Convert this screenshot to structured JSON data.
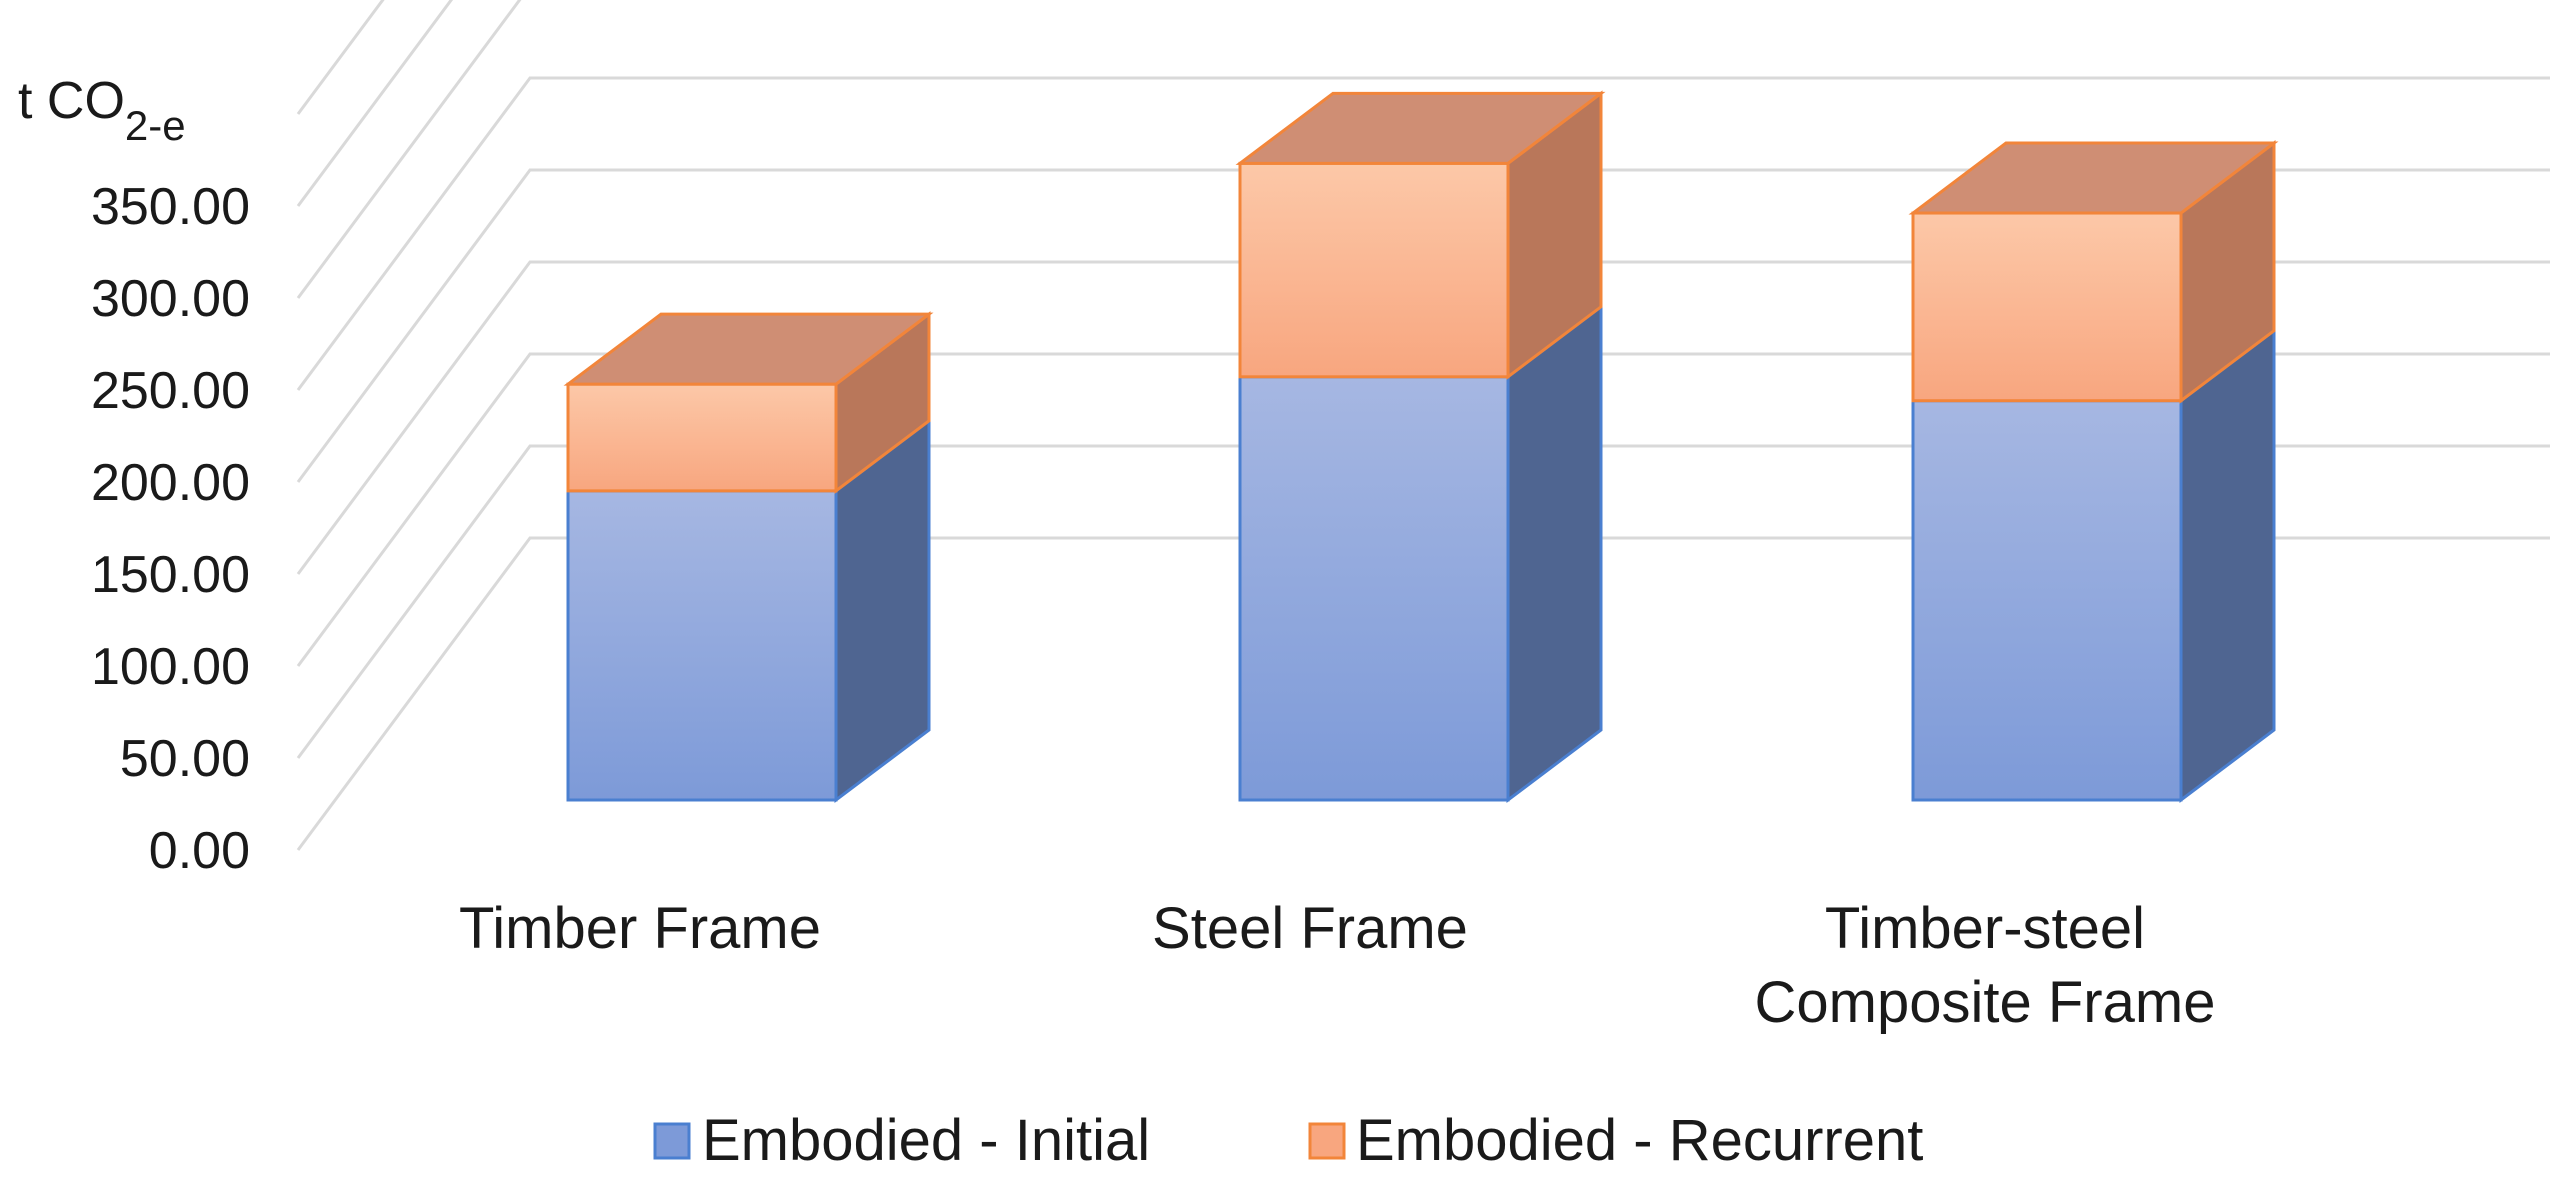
{
  "chart_data": {
    "type": "bar",
    "stacked": true,
    "three_d": true,
    "categories": [
      [
        "Timber Frame"
      ],
      [
        "Steel Frame"
      ],
      [
        "Timber-steel",
        "Composite Frame"
      ]
    ],
    "series": [
      {
        "name": "Embodied - Initial",
        "values": [
          168,
          230,
          217
        ]
      },
      {
        "name": "Embodied - Recurrent",
        "values": [
          58,
          116,
          102
        ]
      }
    ],
    "y_unit": {
      "main": "t CO",
      "sub": "2-e"
    },
    "yticks": [
      "0.00",
      "50.00",
      "100.00",
      "150.00",
      "200.00",
      "250.00",
      "300.00",
      "350.00"
    ],
    "ylim": [
      0,
      400
    ],
    "grid": true,
    "legend": "bottom",
    "colors": {
      "initial_front_top": "#a6b7e2",
      "initial_front_bottom": "#7d9ad8",
      "initial_side": "#4f6591",
      "recurrent_front_top": "#fcc8a8",
      "recurrent_front_bottom": "#f8a67f",
      "recurrent_side": "#b9775a",
      "recurrent_top": "#cf8e74",
      "initial_edge": "#4a7fd0",
      "recurrent_edge": "#f2853a"
    }
  }
}
